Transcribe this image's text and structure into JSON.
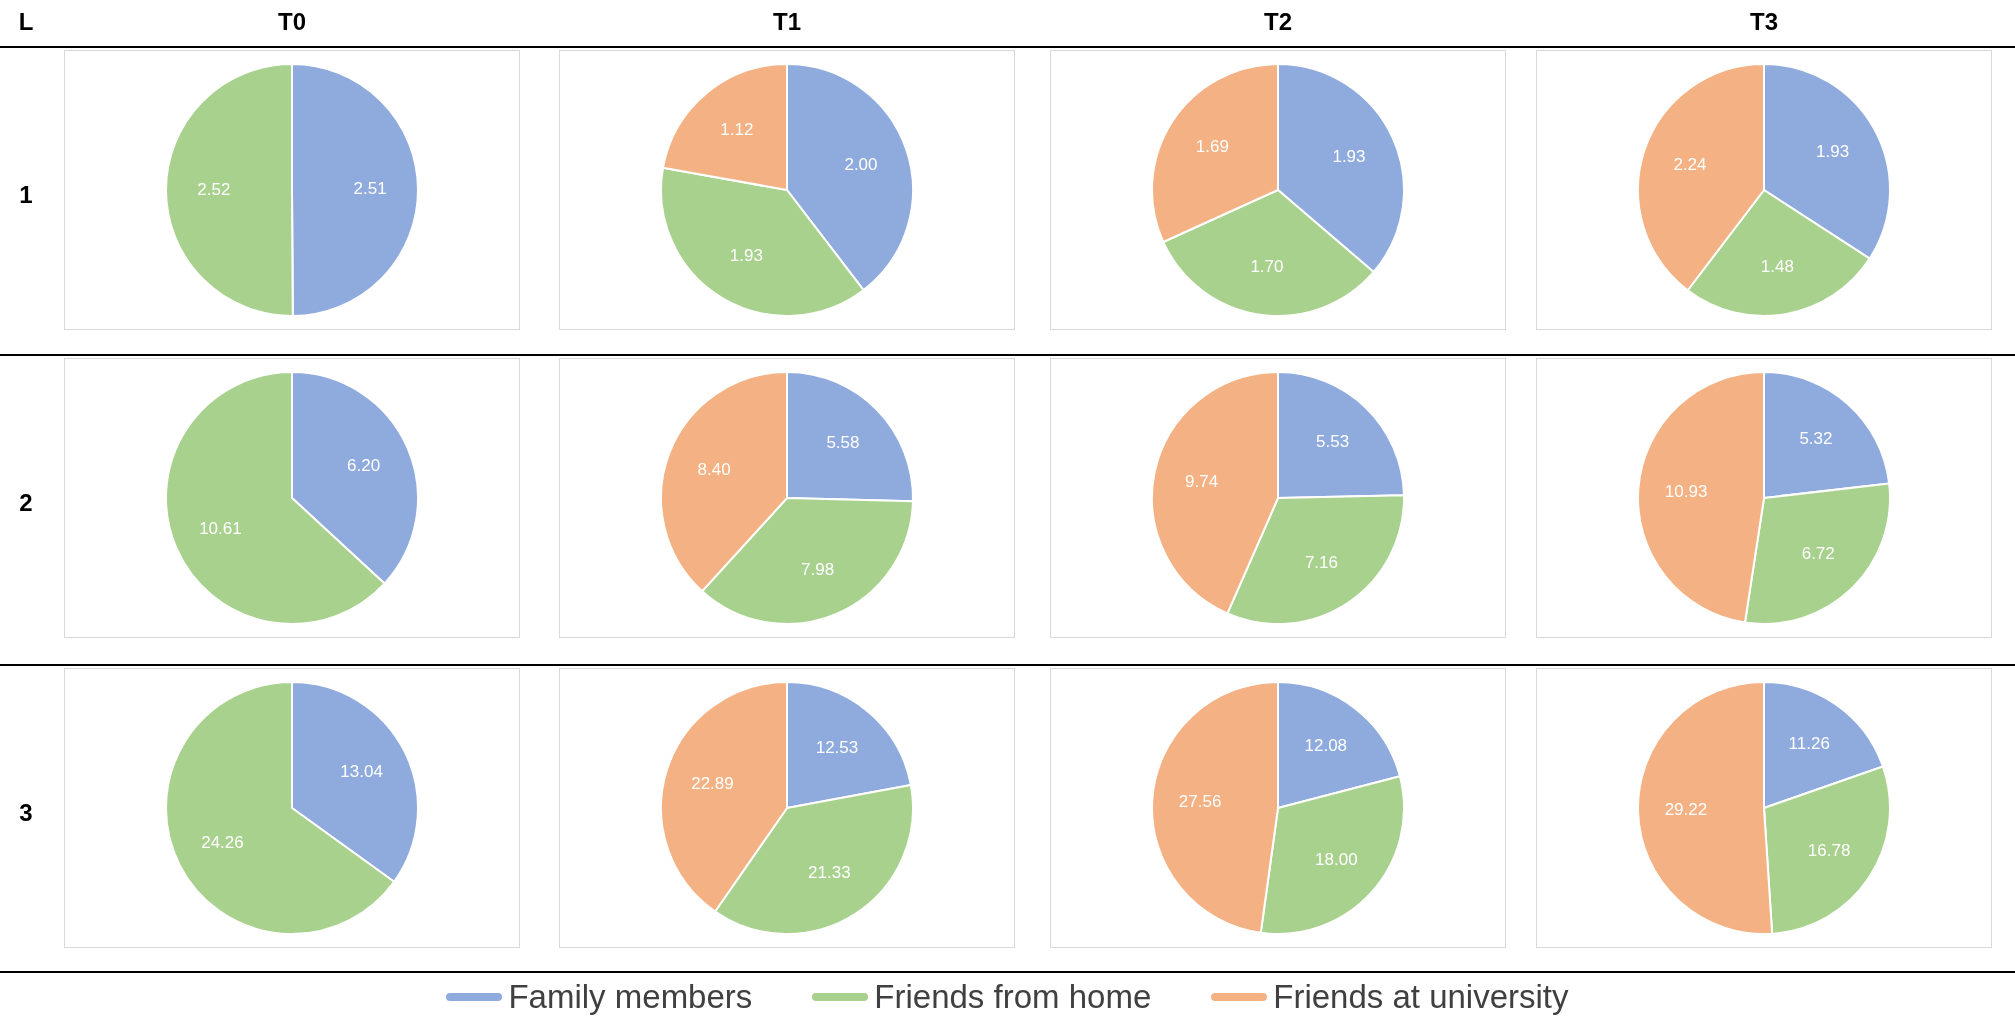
{
  "chart_data": [
    {
      "type": "other",
      "annotations": [
        "L",
        "T0",
        "T1",
        "T2",
        "T3",
        "1",
        "2",
        "3"
      ]
    },
    {
      "type": "pie",
      "categories": [
        null,
        null
      ],
      "values": [
        2.51,
        2.52
      ],
      "value_labels": [
        "2.51",
        "2.52"
      ],
      "colors": [
        "#8faadc",
        "#a9d18e"
      ]
    },
    {
      "type": "pie",
      "categories": [
        "Family members",
        "Friends from home",
        "Friends at university"
      ],
      "values": [
        2.0,
        1.93,
        1.12
      ],
      "value_labels": [
        "2.00",
        "1.93",
        "1.12"
      ],
      "colors": [
        "#8faadc",
        "#a9d18e",
        "#f4b183"
      ],
      "legend": "bottom"
    },
    {
      "type": "pie",
      "categories": [
        null,
        null,
        null
      ],
      "values": [
        1.93,
        1.7,
        1.69
      ],
      "value_labels": [
        "1.93",
        "1.70",
        "1.69"
      ],
      "colors": [
        "#8faadc",
        "#a9d18e",
        "#f4b183"
      ]
    },
    {
      "type": "pie",
      "categories": [
        null,
        null,
        null
      ],
      "values": [
        1.93,
        1.48,
        2.24
      ],
      "value_labels": [
        "1.93",
        "1.48",
        "2.24"
      ],
      "colors": [
        "#8faadc",
        "#a9d18e",
        "#f4b183"
      ]
    },
    {
      "type": "pie",
      "categories": [
        null,
        null
      ],
      "values": [
        6.2,
        10.61
      ],
      "value_labels": [
        "6.20",
        "10.61"
      ],
      "colors": [
        "#8faadc",
        "#a9d18e"
      ]
    },
    {
      "type": "pie",
      "categories": [
        null,
        null,
        null
      ],
      "values": [
        5.58,
        7.98,
        8.4
      ],
      "value_labels": [
        "5.58",
        "7.98",
        "8.40"
      ],
      "colors": [
        "#8faadc",
        "#a9d18e",
        "#f4b183"
      ]
    },
    {
      "type": "pie",
      "categories": [
        null,
        null,
        null
      ],
      "values": [
        5.53,
        7.16,
        9.74
      ],
      "value_labels": [
        "5.53",
        "7.16",
        "9.74"
      ],
      "colors": [
        "#8faadc",
        "#a9d18e",
        "#f4b183"
      ]
    },
    {
      "type": "pie",
      "categories": [
        null,
        null,
        null
      ],
      "values": [
        5.32,
        6.72,
        10.93
      ],
      "value_labels": [
        "5.32",
        "6.72",
        "10.93"
      ],
      "colors": [
        "#8faadc",
        "#a9d18e",
        "#f4b183"
      ]
    },
    {
      "type": "pie",
      "categories": [
        null,
        null
      ],
      "values": [
        13.04,
        24.26
      ],
      "value_labels": [
        "13.04",
        "24.26"
      ],
      "colors": [
        "#8faadc",
        "#a9d18e"
      ]
    },
    {
      "type": "pie",
      "categories": [
        null,
        null,
        null
      ],
      "values": [
        12.53,
        21.33,
        22.89
      ],
      "value_labels": [
        "12.53",
        "21.33",
        "22.89"
      ],
      "colors": [
        "#8faadc",
        "#a9d18e",
        "#f4b183"
      ]
    },
    {
      "type": "pie",
      "categories": [
        null,
        null,
        null
      ],
      "values": [
        12.08,
        18.0,
        27.56
      ],
      "value_labels": [
        "12.08",
        "18.00",
        "27.56"
      ],
      "colors": [
        "#8faadc",
        "#a9d18e",
        "#f4b183"
      ]
    },
    {
      "type": "pie",
      "categories": [
        null,
        null,
        null
      ],
      "values": [
        11.26,
        16.78,
        29.22
      ],
      "value_labels": [
        "11.26",
        "16.78",
        "29.22"
      ],
      "colors": [
        "#8faadc",
        "#a9d18e",
        "#f4b183"
      ]
    }
  ]
}
